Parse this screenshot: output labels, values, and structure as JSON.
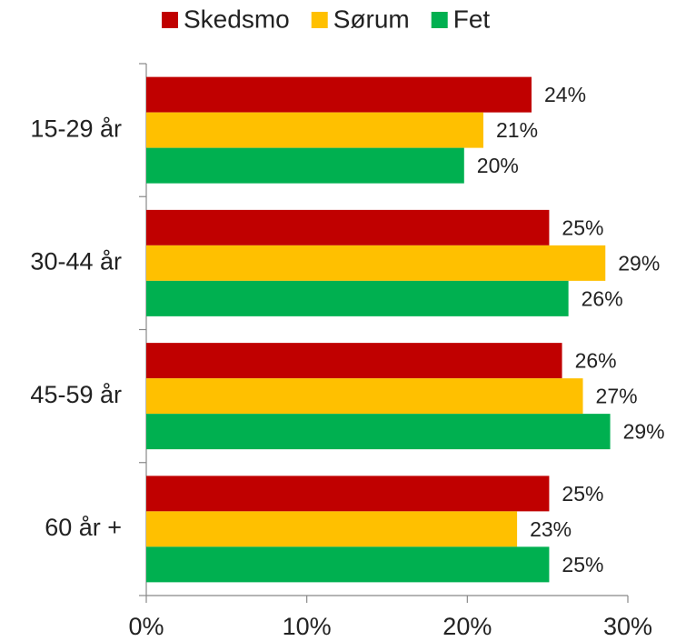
{
  "chart_data": {
    "type": "bar",
    "orientation": "horizontal",
    "categories": [
      "15-29 år",
      "30-44 år",
      "45-59 år",
      "60 år +"
    ],
    "series": [
      {
        "name": "Skedsmo",
        "color": "#c00000",
        "values": [
          24.0,
          25.1,
          25.9,
          25.1
        ],
        "value_labels": [
          "24%",
          "25%",
          "26%",
          "25%"
        ]
      },
      {
        "name": "Sørum",
        "color": "#ffc000",
        "values": [
          21.0,
          28.6,
          27.2,
          23.1
        ],
        "value_labels": [
          "21%",
          "29%",
          "27%",
          "23%"
        ]
      },
      {
        "name": "Fet",
        "color": "#00b050",
        "values": [
          19.8,
          26.3,
          28.9,
          25.1
        ],
        "value_labels": [
          "20%",
          "26%",
          "29%",
          "25%"
        ]
      }
    ],
    "xlim": [
      0,
      30
    ],
    "xticks": [
      {
        "value": 0,
        "label": "0%"
      },
      {
        "value": 10,
        "label": "10%"
      },
      {
        "value": 20,
        "label": "20%"
      },
      {
        "value": 30,
        "label": "30%"
      }
    ],
    "legend": "top"
  }
}
